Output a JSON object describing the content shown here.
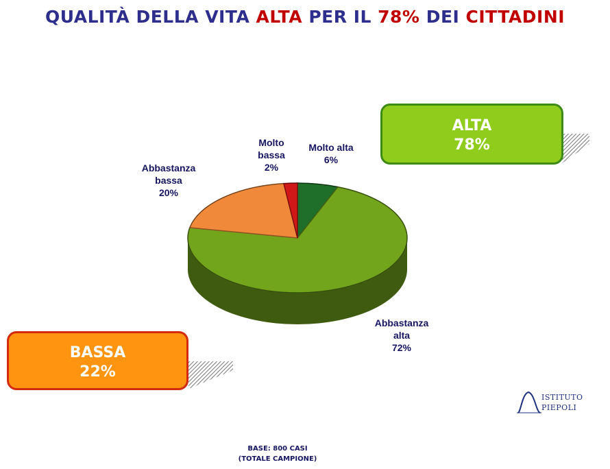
{
  "title": {
    "parts": [
      {
        "text": "QUALITÀ DELLA VITA ",
        "color": "#2e2e8c"
      },
      {
        "text": "ALTA",
        "color": "#c00000"
      },
      {
        "text": " PER IL ",
        "color": "#2e2e8c"
      },
      {
        "text": "78%",
        "color": "#c00000"
      },
      {
        "text": " DEI ",
        "color": "#2e2e8c"
      },
      {
        "text": "CITTADINI",
        "color": "#c00000"
      }
    ]
  },
  "chart_data": {
    "type": "pie",
    "slices": [
      {
        "label_lines": [
          "Molto alta",
          "6%"
        ],
        "value": 6,
        "color": "#1f6e2a"
      },
      {
        "label_lines": [
          "Abbastanza",
          "alta",
          "72%"
        ],
        "value": 72,
        "color": "#73a51c"
      },
      {
        "label_lines": [
          "Abbastanza",
          "bassa",
          "20%"
        ],
        "value": 20,
        "color": "#f08a3a"
      },
      {
        "label_lines": [
          "Molto",
          "bassa",
          "2%"
        ],
        "value": 2,
        "color": "#d01818"
      }
    ]
  },
  "summary_boxes": {
    "alta": {
      "label": "ALTA",
      "value": "78%",
      "color": "#8fcc1c",
      "border": "#3e8a16"
    },
    "bassa": {
      "label": "BASSA",
      "value": "22%",
      "color": "#ff9410",
      "border": "#d32a10"
    }
  },
  "logo": {
    "line1": "ISTITUTO",
    "line2": "PIEPOLI"
  },
  "footer": {
    "line1": "BASE: 800 CASI",
    "line2": "(TOTALE CAMPIONE)"
  }
}
